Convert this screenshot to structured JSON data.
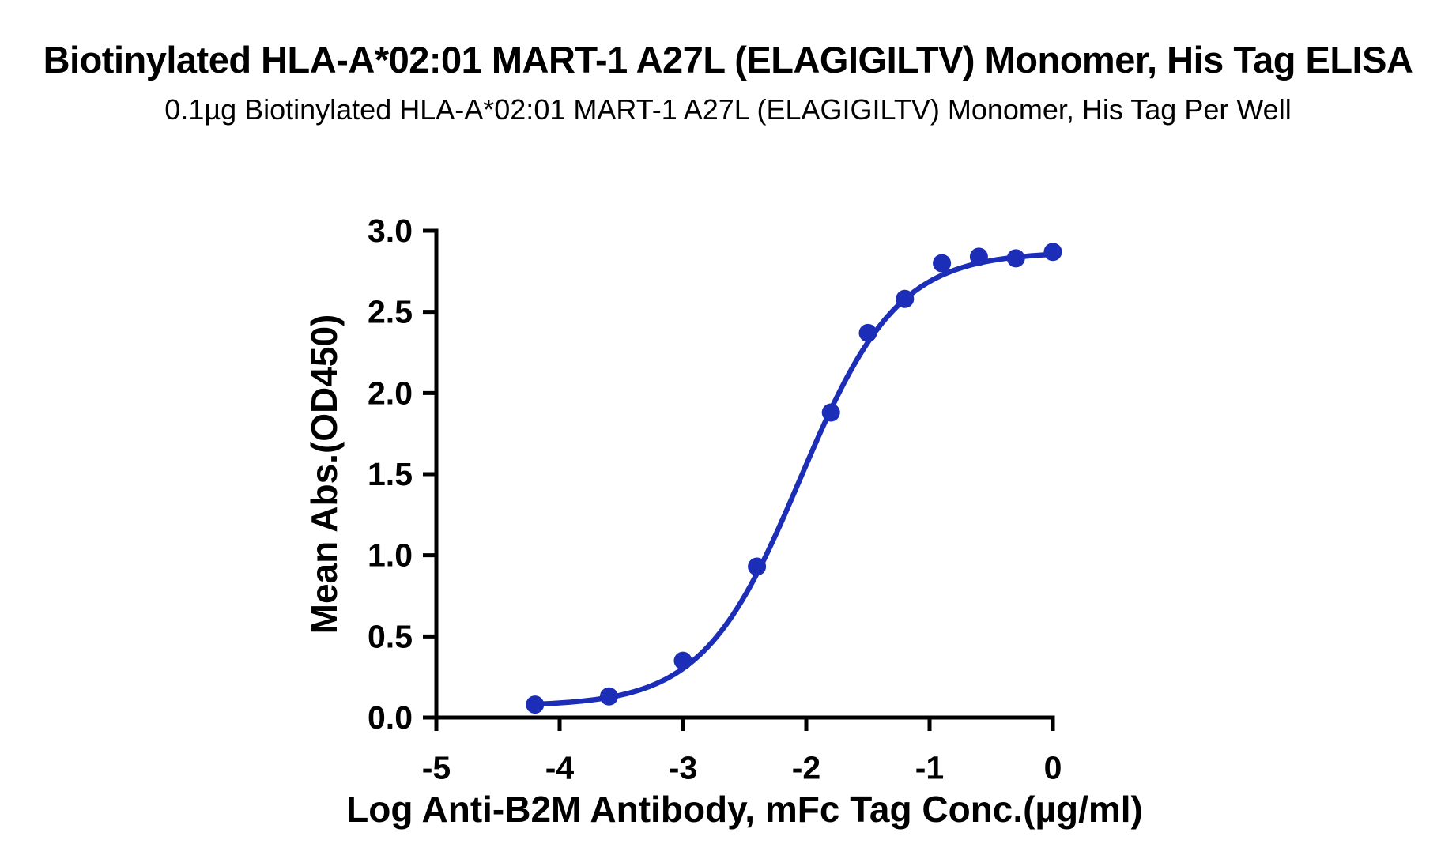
{
  "chart_data": {
    "type": "scatter",
    "title": "Biotinylated HLA-A*02:01 MART-1 A27L (ELAGIGILTV) Monomer, His Tag ELISA",
    "subtitle": "0.1µg Biotinylated HLA-A*02:01 MART-1 A27L (ELAGIGILTV) Monomer, His Tag Per Well",
    "xlabel": "Log Anti-B2M Antibody, mFc Tag Conc.(µg/ml)",
    "ylabel": "Mean Abs.(OD450)",
    "xlim": [
      -5,
      0
    ],
    "ylim": [
      0,
      3
    ],
    "x_ticks": [
      -5,
      -4,
      -3,
      -2,
      -1,
      0
    ],
    "x_tick_labels": [
      "-5",
      "-4",
      "-3",
      "-2",
      "-1",
      "0"
    ],
    "y_ticks": [
      0.0,
      0.5,
      1.0,
      1.5,
      2.0,
      2.5,
      3.0
    ],
    "y_tick_labels": [
      "0.0",
      "0.5",
      "1.0",
      "1.5",
      "2.0",
      "2.5",
      "3.0"
    ],
    "grid": false,
    "legend": "none",
    "x": [
      -4.2,
      -3.6,
      -3.0,
      -2.4,
      -1.8,
      -1.5,
      -1.2,
      -0.9,
      -0.6,
      -0.3,
      0.0
    ],
    "y": [
      0.08,
      0.13,
      0.35,
      0.93,
      1.88,
      2.37,
      2.58,
      2.8,
      2.84,
      2.83,
      2.87
    ],
    "fit_curve": {
      "model": "4PL",
      "bottom": 0.07,
      "top": 2.87,
      "logEC50": -2.05,
      "hillslope": 1.1
    },
    "colors": {
      "line": "#1c2eb8",
      "point": "#1c2eb8",
      "axis": "#000000"
    }
  }
}
